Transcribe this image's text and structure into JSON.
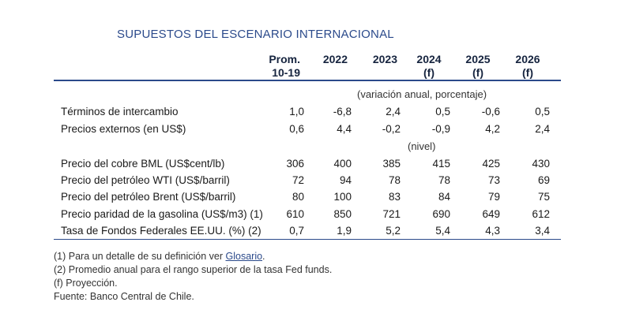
{
  "title": "SUPUESTOS DEL ESCENARIO INTERNACIONAL",
  "columns": [
    {
      "line1": "Prom.",
      "line2": "10-19"
    },
    {
      "line1": "2022",
      "line2": ""
    },
    {
      "line1": "2023",
      "line2": ""
    },
    {
      "line1": "2024",
      "line2": "(f)"
    },
    {
      "line1": "2025",
      "line2": "(f)"
    },
    {
      "line1": "2026",
      "line2": "(f)"
    }
  ],
  "subheaders": {
    "variation": "(variación anual, porcentaje)",
    "level": "(nivel)"
  },
  "rows": [
    {
      "label": "Términos de intercambio",
      "values": [
        "1,0",
        "-6,8",
        "2,4",
        "0,5",
        "-0,6",
        "0,5"
      ]
    },
    {
      "label": "Precios externos (en US$)",
      "values": [
        "0,6",
        "4,4",
        "-0,2",
        "-0,9",
        "4,2",
        "2,4"
      ]
    },
    {
      "label": "Precio del cobre BML (US$cent/lb)",
      "values": [
        "306",
        "400",
        "385",
        "415",
        "425",
        "430"
      ]
    },
    {
      "label": "Precio del petróleo WTI (US$/barril)",
      "values": [
        "72",
        "94",
        "78",
        "78",
        "73",
        "69"
      ]
    },
    {
      "label": "Precio del petróleo Brent (US$/barril)",
      "values": [
        "80",
        "100",
        "83",
        "84",
        "79",
        "75"
      ]
    },
    {
      "label": "Precio paridad de la gasolina (US$/m3) (1)",
      "values": [
        "610",
        "850",
        "721",
        "690",
        "649",
        "612"
      ]
    },
    {
      "label": "Tasa de Fondos Federales EE.UU. (%) (2)",
      "values": [
        "0,7",
        "1,9",
        "5,2",
        "5,4",
        "4,3",
        "3,4"
      ]
    }
  ],
  "notes": {
    "note1_prefix": "(1) Para un detalle de su definición ver ",
    "note1_link": "Glosario",
    "note1_suffix": ".",
    "note2": "(2) Promedio anual para el rango superior de la tasa Fed funds.",
    "note3": "(f) Proyección.",
    "source": "Fuente: Banco Central de Chile."
  }
}
